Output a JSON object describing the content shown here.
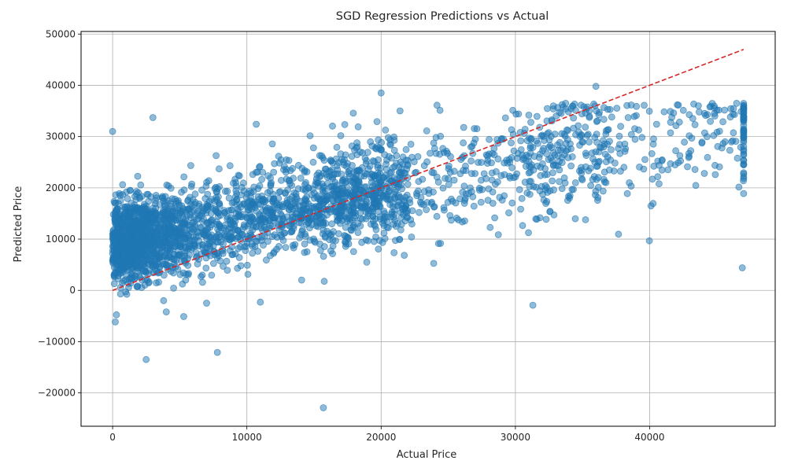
{
  "chart_data": {
    "type": "scatter",
    "title": "SGD Regression Predictions vs Actual",
    "xlabel": "Actual Price",
    "ylabel": "Predicted Price",
    "xlim": [
      -2350,
      49350
    ],
    "ylim": [
      -26500,
      50500
    ],
    "xticks": [
      0,
      10000,
      20000,
      30000,
      40000
    ],
    "xtick_labels": [
      "0",
      "10000",
      "20000",
      "30000",
      "40000"
    ],
    "yticks": [
      -20000,
      -10000,
      0,
      10000,
      20000,
      30000,
      40000,
      50000
    ],
    "ytick_labels": [
      "−20000",
      "−10000",
      "0",
      "10000",
      "20000",
      "30000",
      "40000",
      "50000"
    ],
    "grid": true,
    "colors": {
      "points": "#1f77b4",
      "ideal_line": "#d62728",
      "grid": "#b0b0b0",
      "axes": "#000000"
    },
    "reference_line": {
      "x": [
        0,
        47000
      ],
      "y": [
        0,
        47000
      ],
      "style": "dashed"
    },
    "series": [
      {
        "point_count": 3000,
        "outliers": [
          {
            "x": 3000,
            "y": 33700
          },
          {
            "x": 2500,
            "y": -13500
          },
          {
            "x": 7800,
            "y": -12100
          },
          {
            "x": 15700,
            "y": -22900
          },
          {
            "x": 20000,
            "y": 38500
          },
          {
            "x": 31300,
            "y": -2900
          },
          {
            "x": 36000,
            "y": 39800
          },
          {
            "x": 5300,
            "y": -5100
          },
          {
            "x": 4000,
            "y": -4200
          },
          {
            "x": 11000,
            "y": -2300
          },
          {
            "x": 3800,
            "y": -2000
          },
          {
            "x": 7000,
            "y": -2500
          },
          {
            "x": 46900,
            "y": 4400
          },
          {
            "x": 0,
            "y": 31000
          },
          {
            "x": 10700,
            "y": 32400
          }
        ]
      }
    ]
  }
}
